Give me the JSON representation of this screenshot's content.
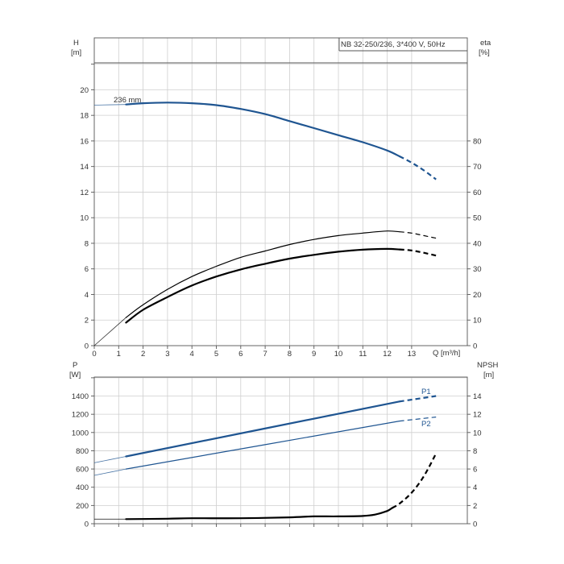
{
  "chart_data": [
    {
      "type": "line",
      "title": "NB 32-250/236, 3*400 V, 50Hz",
      "xlabel": "Q [m³/h]",
      "ylabel_left_name": "H",
      "ylabel_left_unit": "[m]",
      "ylabel_right_name": "eta",
      "ylabel_right_unit": "[%]",
      "xlim": [
        0,
        14
      ],
      "ylim_left": [
        0,
        22
      ],
      "ylim_right": [
        0,
        110
      ],
      "x_ticks": [
        0,
        1,
        2,
        3,
        4,
        5,
        6,
        7,
        8,
        9,
        10,
        11,
        12,
        13
      ],
      "x_tick_labels": [
        "0",
        "1",
        "2",
        "3",
        "4",
        "5",
        "6",
        "7",
        "8",
        "9",
        "10",
        "11",
        "12",
        "13"
      ],
      "y_left_ticks": [
        0,
        2,
        4,
        6,
        8,
        10,
        12,
        14,
        16,
        18,
        20
      ],
      "y_left_tick_labels": [
        "0",
        "2",
        "4",
        "6",
        "8",
        "10",
        "12",
        "14",
        "16",
        "18",
        "20"
      ],
      "y_right_ticks": [
        0,
        10,
        20,
        30,
        40,
        50,
        60,
        70,
        80
      ],
      "y_right_tick_labels": [
        "0",
        "10",
        "20",
        "30",
        "40",
        "50",
        "60",
        "70",
        "80"
      ],
      "grid": true,
      "series": [
        {
          "name": "236 mm",
          "axis": "left",
          "color": "#1f5591",
          "x": [
            0,
            1.3,
            2,
            3,
            4,
            5,
            6,
            7,
            8,
            9,
            10,
            11,
            12,
            12.5,
            13,
            13.5,
            14
          ],
          "y": [
            18.8,
            18.85,
            18.95,
            19.0,
            18.95,
            18.8,
            18.5,
            18.1,
            17.55,
            17.0,
            16.45,
            15.9,
            15.25,
            14.8,
            14.3,
            13.7,
            13.0
          ],
          "solid_until": 12.5
        },
        {
          "axis": "right",
          "color": "#000000",
          "x": [
            0,
            1.3,
            2,
            3,
            4,
            5,
            6,
            7,
            8,
            9,
            10,
            11,
            12,
            12.5,
            13,
            13.5,
            14
          ],
          "y": [
            0,
            11,
            16,
            22,
            27,
            31,
            34.5,
            37,
            39.5,
            41.5,
            43,
            44,
            44.8,
            44.5,
            44,
            43,
            42
          ],
          "solid_until": 12.5
        },
        {
          "axis": "right",
          "color": "#000000",
          "x": [
            1.3,
            2,
            3,
            4,
            5,
            6,
            7,
            8,
            9,
            10,
            11,
            12,
            12.5,
            13,
            13.5,
            14
          ],
          "y": [
            9,
            14,
            19,
            23.5,
            27,
            29.8,
            32,
            34,
            35.5,
            36.7,
            37.5,
            37.8,
            37.6,
            37.2,
            36.3,
            35.2
          ],
          "solid_until": 12.5
        }
      ]
    },
    {
      "type": "line",
      "xlabel": "",
      "ylabel_left_name": "P",
      "ylabel_left_unit": "[W]",
      "ylabel_right_name": "NPSH",
      "ylabel_right_unit": "[m]",
      "xlim": [
        0,
        14
      ],
      "ylim_left": [
        0,
        1600
      ],
      "ylim_right": [
        0,
        16
      ],
      "x_ticks": [
        0,
        1,
        2,
        3,
        4,
        5,
        6,
        7,
        8,
        9,
        10,
        11,
        12,
        13
      ],
      "y_left_ticks": [
        0,
        200,
        400,
        600,
        800,
        1000,
        1200,
        1400
      ],
      "y_left_tick_labels": [
        "0",
        "200",
        "400",
        "600",
        "800",
        "1000",
        "1200",
        "1400"
      ],
      "y_right_ticks": [
        0,
        2,
        4,
        6,
        8,
        10,
        12,
        14
      ],
      "y_right_tick_labels": [
        "0",
        "2",
        "4",
        "6",
        "8",
        "10",
        "12",
        "14"
      ],
      "grid": true,
      "series": [
        {
          "name": "P1",
          "axis": "left",
          "color": "#1f5591",
          "x": [
            0,
            1.3,
            12.5,
            14
          ],
          "y": [
            668,
            738,
            1340,
            1400
          ],
          "solid_until": 12.5
        },
        {
          "name": "P2",
          "axis": "left",
          "color": "#1f5591",
          "x": [
            0,
            1.3,
            12.5,
            14
          ],
          "y": [
            530,
            600,
            1125,
            1170
          ],
          "solid_until": 12.5
        },
        {
          "axis": "right",
          "color": "#000000",
          "x": [
            0,
            1.3,
            3,
            4,
            6,
            8,
            9,
            10,
            11,
            11.5,
            12,
            12.5,
            13,
            13.5,
            14
          ],
          "y": [
            0.5,
            0.5,
            0.55,
            0.6,
            0.6,
            0.7,
            0.8,
            0.8,
            0.85,
            1.0,
            1.4,
            2.2,
            3.4,
            5.2,
            7.7
          ],
          "solid_until": 12.2
        }
      ]
    }
  ]
}
